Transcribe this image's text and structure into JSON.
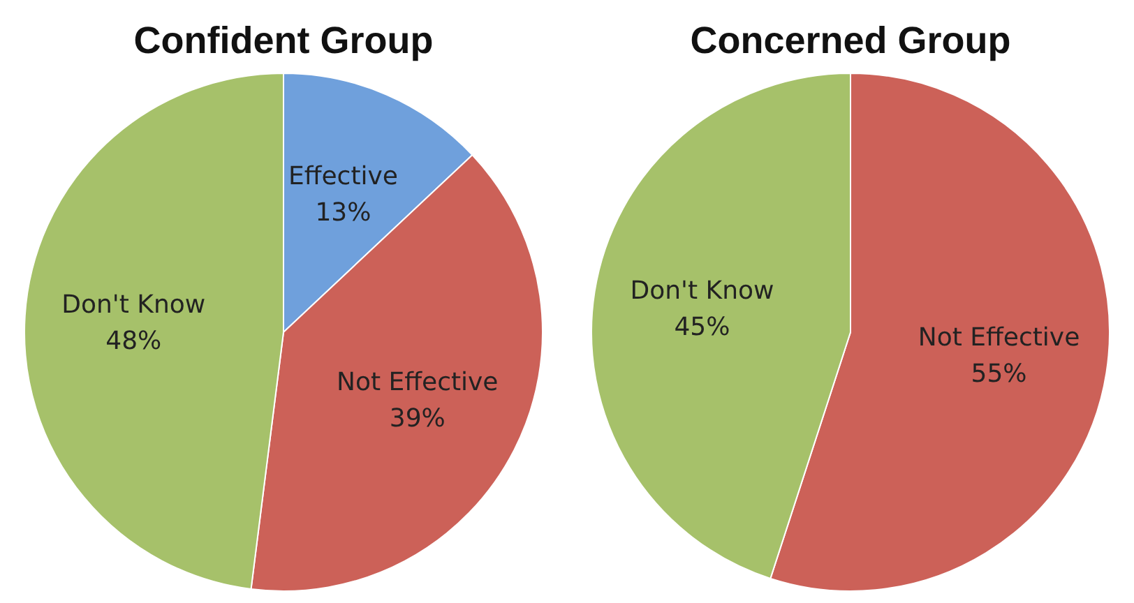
{
  "chart_data": [
    {
      "type": "pie",
      "title": "Confident Group",
      "categories": [
        "Effective",
        "Not Effective",
        "Don't Know"
      ],
      "values": [
        13,
        39,
        48
      ],
      "colors": [
        "#6fa0dc",
        "#cc6158",
        "#a6c16a"
      ],
      "value_labels": [
        "13%",
        "39%",
        "48%"
      ]
    },
    {
      "type": "pie",
      "title": "Concerned Group",
      "categories": [
        "Not Effective",
        "Don't Know"
      ],
      "values": [
        55,
        45
      ],
      "colors": [
        "#cc6158",
        "#a6c16a"
      ],
      "value_labels": [
        "55%",
        "45%"
      ]
    }
  ]
}
